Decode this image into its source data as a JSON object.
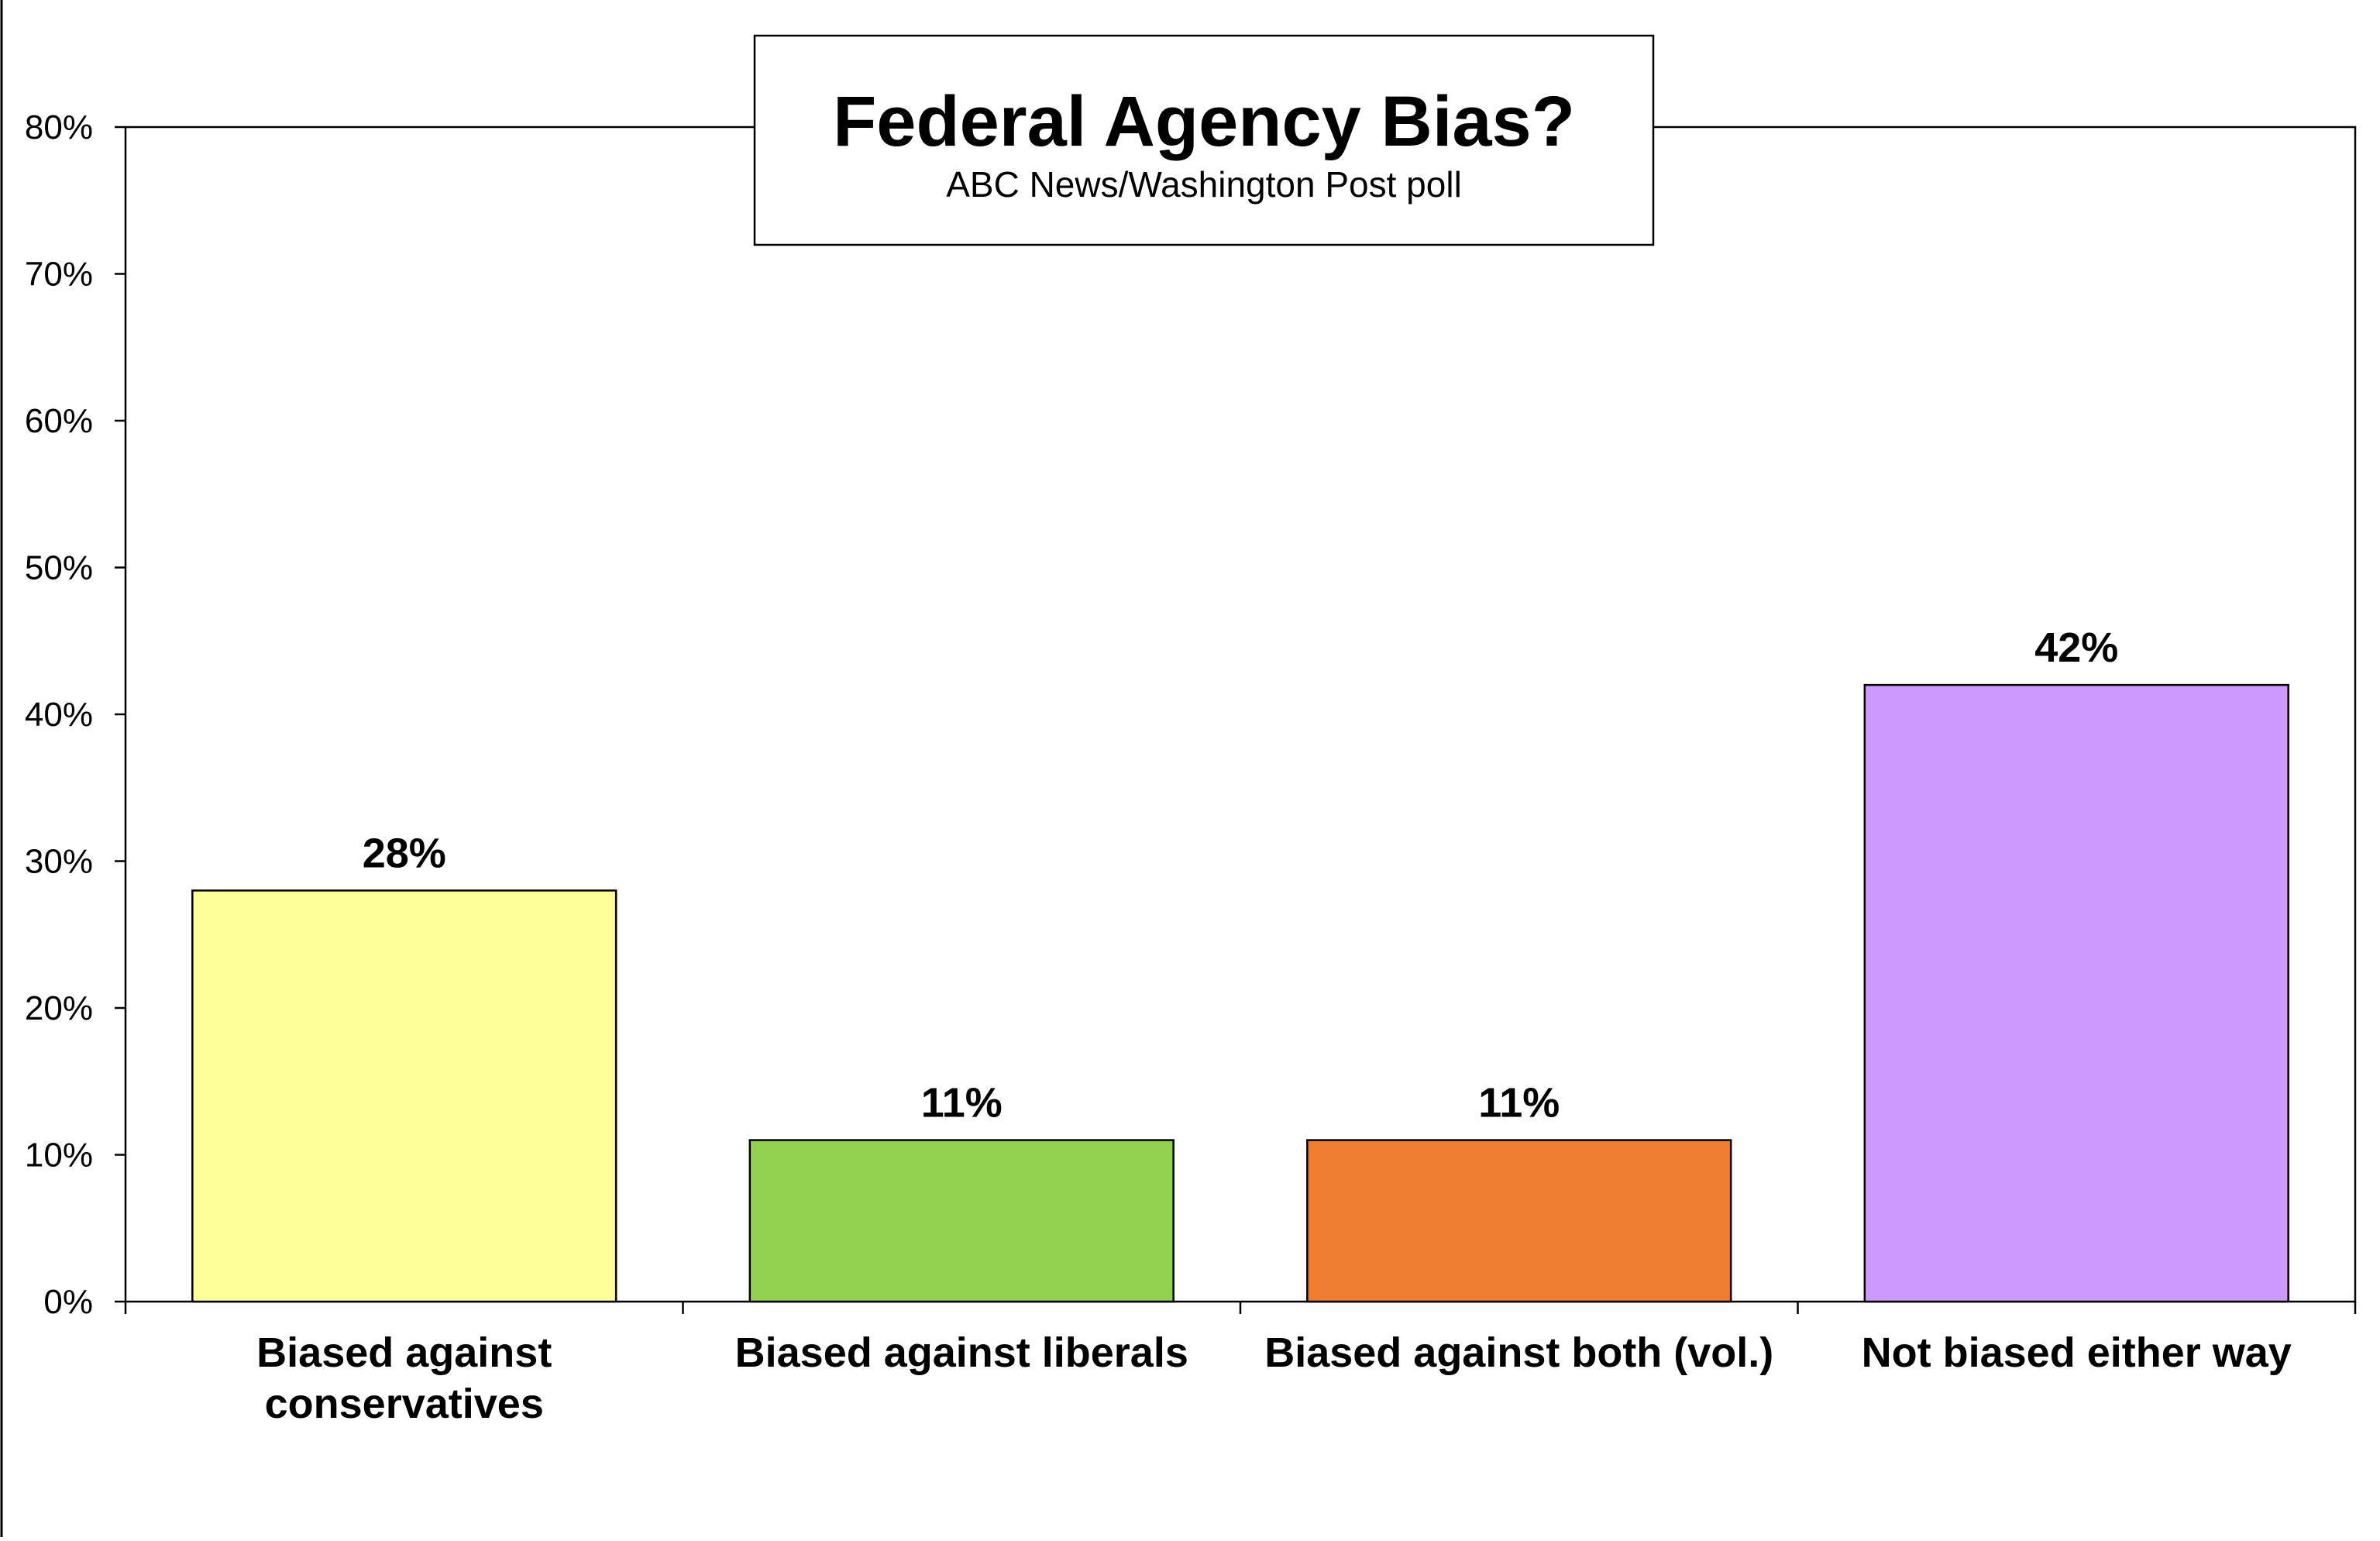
{
  "chart_data": {
    "type": "bar",
    "title": "Federal Agency Bias?",
    "subtitle": "ABC News/Washington Post poll",
    "xlabel": "",
    "ylabel": "",
    "categories": [
      [
        "Biased against",
        "conservatives"
      ],
      [
        "Biased against liberals"
      ],
      [
        "Biased against both (vol.)"
      ],
      [
        "Not biased either way"
      ]
    ],
    "values": [
      28,
      11,
      11,
      42
    ],
    "value_labels": [
      "28%",
      "11%",
      "11%",
      "42%"
    ],
    "colors": [
      "#FFFF99",
      "#92D050",
      "#ED7D31",
      "#CC99FF"
    ],
    "ylim": [
      0,
      80
    ],
    "yticks": [
      0,
      10,
      20,
      30,
      40,
      50,
      60,
      70,
      80
    ],
    "ytick_labels": [
      "0%",
      "10%",
      "20%",
      "30%",
      "40%",
      "50%",
      "60%",
      "70%",
      "80%"
    ],
    "grid": false,
    "legend": "none"
  }
}
